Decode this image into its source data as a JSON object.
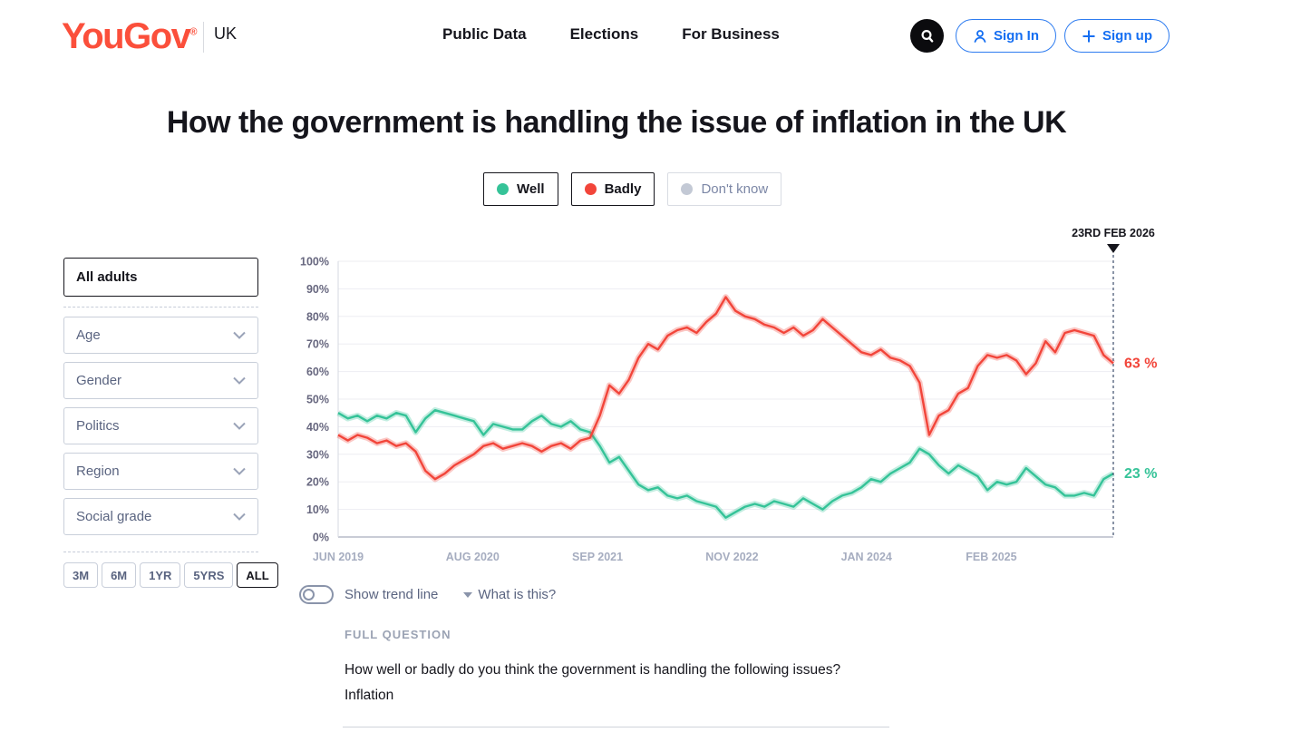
{
  "header": {
    "logo": "YouGov",
    "logo_reg": "®",
    "country": "UK",
    "nav": [
      {
        "label": "Public Data"
      },
      {
        "label": "Elections"
      },
      {
        "label": "For Business"
      }
    ],
    "signin_label": "Sign In",
    "signup_label": "Sign up"
  },
  "title": "How the government is handling the issue of inflation in the UK",
  "legend": [
    {
      "label": "Well",
      "color": "#35c398",
      "active": true
    },
    {
      "label": "Badly",
      "color": "#f2453a",
      "active": true
    },
    {
      "label": "Don't know",
      "color": "#c3c9d5",
      "active": false
    }
  ],
  "sidebar": {
    "crossbreak": "All adults",
    "filters": [
      {
        "label": "Age"
      },
      {
        "label": "Gender"
      },
      {
        "label": "Politics"
      },
      {
        "label": "Region"
      },
      {
        "label": "Social grade"
      }
    ],
    "ranges": [
      "3M",
      "6M",
      "1YR",
      "5YRS",
      "ALL"
    ],
    "active_range": "ALL"
  },
  "trend": {
    "toggle_label": "Show trend line",
    "help_label": "What is this?"
  },
  "full_question": {
    "heading": "FULL QUESTION",
    "line1": "How well or badly do you think the government is handling the following issues?",
    "line2": "Inflation"
  },
  "colors": {
    "brand_coral": "#fb4f3b",
    "link_blue": "#146ef2",
    "well_teal": "#35c398",
    "badly_red": "#f2453a",
    "axis_label": "#67677f",
    "x_label": "#a6adc0",
    "grid": "#ededf2",
    "axis_line": "#b7bcc8",
    "spine": "#d6d9e0",
    "cursor_dash": "#4c5b77"
  },
  "chart_data": {
    "type": "line",
    "title": "How the government is handling the issue of inflation in the UK",
    "ylim": [
      0,
      100
    ],
    "grid": true,
    "y_tick_labels": [
      "0%",
      "10%",
      "20%",
      "30%",
      "40%",
      "50%",
      "60%",
      "70%",
      "80%",
      "90%",
      "100%"
    ],
    "x_ticks": [
      {
        "label": "JUN 2019",
        "month": 0
      },
      {
        "label": "AUG 2020",
        "month": 14
      },
      {
        "label": "SEP 2021",
        "month": 27
      },
      {
        "label": "NOV 2022",
        "month": 41
      },
      {
        "label": "JAN 2024",
        "month": 55
      },
      {
        "label": "FEB 2025",
        "month": 68
      }
    ],
    "x_unit": "months since Jun 2019, ending 23 Feb 2026 (month 80.7)",
    "x_end_month": 80.7,
    "annotation": {
      "label": "23RD FEB 2026",
      "month": 80.7
    },
    "series": [
      {
        "name": "Well",
        "color": "#35c398",
        "end_label": "23 %",
        "end_value": 23,
        "values": [
          45,
          43,
          44,
          42,
          44,
          43,
          45,
          44,
          38,
          43,
          46,
          45,
          44,
          43,
          42,
          37,
          41,
          40,
          39,
          39,
          42,
          44,
          41,
          40,
          42,
          39,
          38,
          33,
          27,
          29,
          24,
          19,
          17,
          18,
          15,
          14,
          15,
          13,
          12,
          11,
          7,
          9,
          11,
          12,
          11,
          13,
          12,
          11,
          14,
          12,
          10,
          13,
          15,
          16,
          18,
          21,
          20,
          23,
          25,
          27,
          32,
          30,
          26,
          23,
          26,
          24,
          22,
          17,
          20,
          19,
          20,
          25,
          22,
          19,
          18,
          15,
          15,
          16,
          15,
          21,
          23
        ]
      },
      {
        "name": "Badly",
        "color": "#f2453a",
        "end_label": "63 %",
        "end_value": 63,
        "values": [
          37,
          35,
          37,
          36,
          34,
          35,
          33,
          34,
          31,
          24,
          21,
          23,
          26,
          28,
          30,
          33,
          34,
          32,
          33,
          34,
          33,
          31,
          33,
          34,
          32,
          35,
          36,
          44,
          55,
          52,
          57,
          65,
          70,
          68,
          73,
          75,
          76,
          74,
          78,
          81,
          87,
          82,
          80,
          79,
          77,
          76,
          74,
          76,
          73,
          75,
          79,
          76,
          73,
          70,
          67,
          66,
          68,
          65,
          64,
          62,
          56,
          37,
          44,
          46,
          52,
          54,
          62,
          66,
          65,
          66,
          64,
          59,
          63,
          71,
          67,
          74,
          75,
          74,
          73,
          66,
          63
        ]
      }
    ],
    "legend_position": "top-center"
  }
}
